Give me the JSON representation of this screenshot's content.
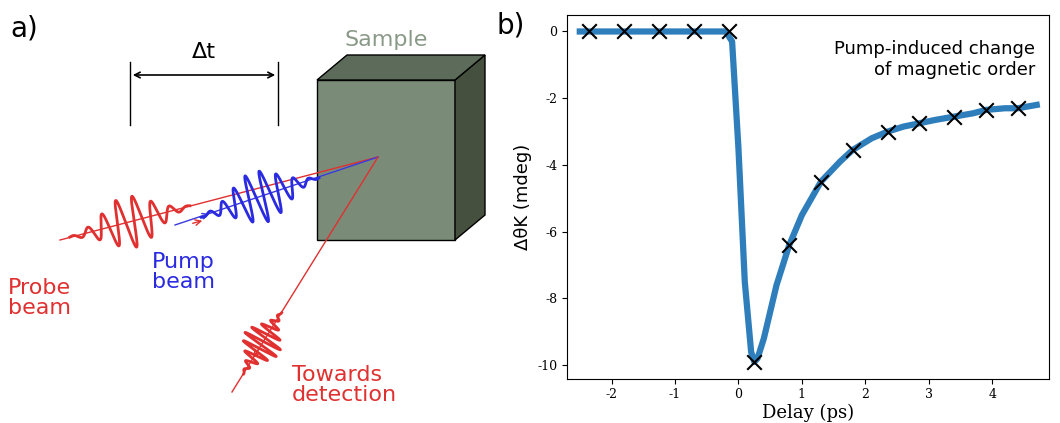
{
  "diagram": {
    "label": "a)",
    "delay": "Δt",
    "sample": "Sample",
    "probe": "Probe\nbeam",
    "pump": "Pump\nbeam",
    "detection": "Towards\ndetection"
  },
  "chart_data": {
    "label": "b)",
    "type": "line",
    "xlabel": "Delay (ps)",
    "ylabel": "ΔθK (mdeg)",
    "annotation": "Pump-induced change\nof magnetic order",
    "xlim": [
      -2.7,
      4.9
    ],
    "xticks": [
      -2,
      -1,
      0,
      1,
      2,
      3,
      4
    ],
    "ylim": [
      -10.4,
      0.5
    ],
    "yticks": [
      0,
      -2,
      -4,
      -6,
      -8,
      -10
    ],
    "series": [
      {
        "type": "line",
        "color": "#2f7ebc",
        "x": [
          -2.5,
          -2.0,
          -1.5,
          -1.0,
          -0.5,
          -0.2,
          -0.1,
          0.0,
          0.1,
          0.2,
          0.25,
          0.3,
          0.4,
          0.5,
          0.6,
          0.8,
          1.0,
          1.3,
          1.6,
          1.8,
          2.1,
          2.35,
          2.6,
          2.85,
          3.1,
          3.4,
          3.7,
          3.9,
          4.2,
          4.4,
          4.7
        ],
        "values": [
          0,
          0,
          0,
          0,
          0,
          0,
          -0.3,
          -3.5,
          -7.5,
          -9.6,
          -9.9,
          -9.8,
          -9.2,
          -8.4,
          -7.6,
          -6.4,
          -5.5,
          -4.5,
          -3.9,
          -3.55,
          -3.2,
          -3.0,
          -2.85,
          -2.75,
          -2.65,
          -2.55,
          -2.45,
          -2.35,
          -2.3,
          -2.3,
          -2.2
        ]
      },
      {
        "type": "scatter",
        "color": "#000000",
        "marker": "x",
        "x": [
          -2.35,
          -1.8,
          -1.25,
          -0.7,
          -0.15,
          0.25,
          0.8,
          1.3,
          1.8,
          2.35,
          2.85,
          3.4,
          3.9,
          4.4
        ],
        "values": [
          0,
          0,
          0,
          0,
          0,
          -9.9,
          -6.4,
          -4.5,
          -3.55,
          -3.0,
          -2.75,
          -2.55,
          -2.35,
          -2.3
        ]
      }
    ]
  }
}
